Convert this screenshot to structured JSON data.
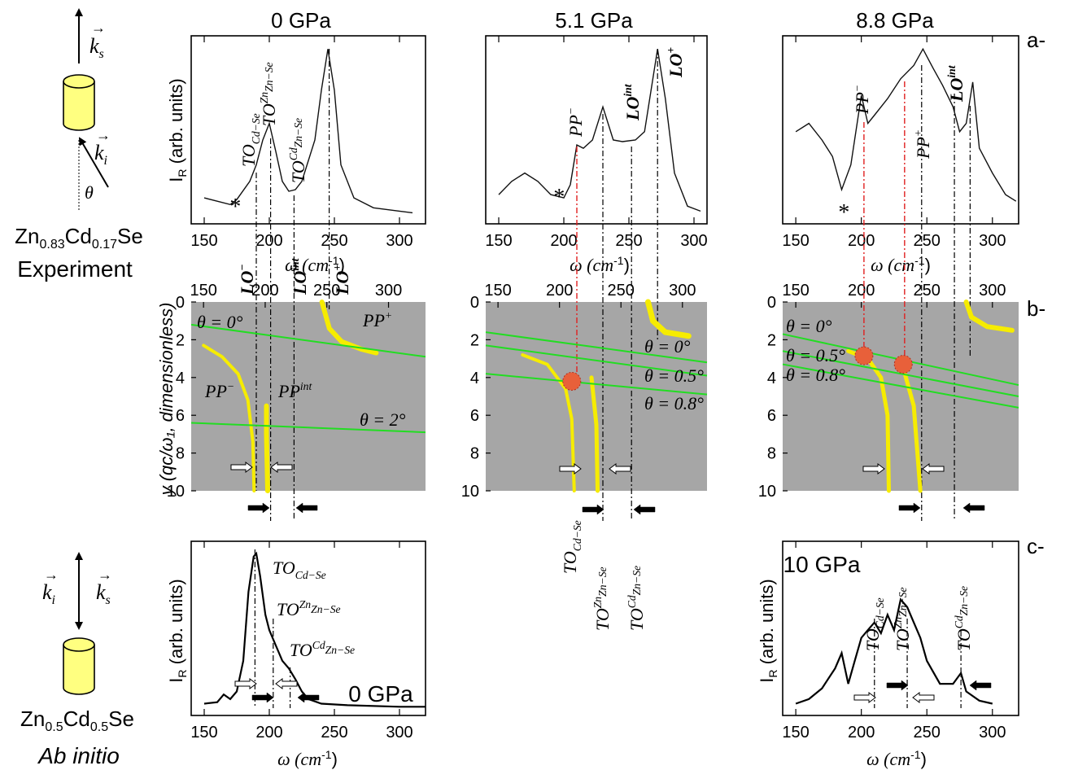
{
  "pressures": [
    "0 GPa",
    "5.1 GPa",
    "8.8 GPa"
  ],
  "row_tags": [
    "a-",
    "b-",
    "c-"
  ],
  "sample_top": {
    "formula_base": "Zn",
    "formula_sub1": "0.83",
    "formula_mid": "Cd",
    "formula_sub2": "0.17",
    "formula_end": "Se",
    "caption": "Experiment"
  },
  "sample_bottom": {
    "formula_base": "Zn",
    "formula_sub1": "0.5",
    "formula_mid": "Cd",
    "formula_sub2": "0.5",
    "formula_end": "Se",
    "caption": "Ab initio"
  },
  "vector_labels": {
    "ks": "k",
    "ks_sub": "s",
    "ki": "k",
    "ki_sub": "i",
    "theta": "θ"
  },
  "axes": {
    "raman_ylabel": "I",
    "raman_ylabel_sub": "R",
    "raman_ylabel_rest": " (arb. units)",
    "omega_label": "ω (cm",
    "omega_exp": "-1",
    "omega_close": ")",
    "y_label": "y (qc/ω₁, dimensionless)"
  },
  "peak_labels": {
    "to_cd": "TO",
    "to_cd_sub": "Cd−Se",
    "to_zn": "TO",
    "to_zn_sup": "Zn",
    "to_zn_sub": "Zn−Se",
    "to_zncd_sup": "Cd",
    "lo_minus": "LO",
    "lo_minus_sup": "−",
    "lo_int": "LO",
    "lo_int_sup": "int",
    "lo_plus": "LO",
    "lo_plus_sup": "+",
    "pp_minus": "PP",
    "pp_minus_sup": "−",
    "pp_plus": "PP",
    "pp_plus_sup": "+",
    "pp_int": "PP",
    "pp_int_sup": "int",
    "star": "*"
  },
  "theta_labels": {
    "p1": [
      "θ = 0°",
      "θ = 2°"
    ],
    "p2": [
      "θ = 0°",
      "θ = 0.5°",
      "θ = 0.8°"
    ],
    "p3": [
      "θ = 0°",
      "θ = 0.5°",
      "θ = 0.8°"
    ]
  },
  "inset_labels": {
    "p3": "10 GPa",
    "p1": "0 GPa"
  },
  "colors": {
    "background_map": "#a6a6a6",
    "pp_branch": "#f6ec00",
    "theta_line": "#22dd22",
    "marker": "#e8603a",
    "guide_red": "#e02020"
  },
  "chart_data": [
    {
      "type": "line",
      "title": "0 GPa",
      "xlabel": "ω (cm-1)",
      "ylabel": "IR (arb. units)",
      "xlim": [
        140,
        320
      ],
      "xticks": [
        150,
        200,
        250,
        300
      ],
      "x": [
        150,
        160,
        170,
        175,
        185,
        190,
        195,
        200,
        205,
        210,
        215,
        220,
        225,
        235,
        240,
        245,
        250,
        255,
        265,
        280,
        300,
        310
      ],
      "y": [
        0.1,
        0.08,
        0.06,
        0.09,
        0.2,
        0.3,
        0.45,
        0.55,
        0.38,
        0.2,
        0.14,
        0.15,
        0.2,
        0.45,
        0.75,
        1.0,
        0.75,
        0.3,
        0.1,
        0.04,
        0.02,
        0.01
      ],
      "peaks": {
        "TO_Cd-Se": 190,
        "TO_Zn-Se^Zn": 201,
        "TO_Zn-Se^Cd": 219,
        "LO+": 246
      }
    },
    {
      "type": "line",
      "title": "5.1 GPa",
      "xlabel": "ω (cm-1)",
      "ylabel": "",
      "xlim": [
        140,
        310
      ],
      "xticks": [
        150,
        200,
        250,
        300
      ],
      "x": [
        150,
        160,
        170,
        180,
        190,
        200,
        205,
        210,
        215,
        222,
        230,
        238,
        245,
        255,
        262,
        268,
        272,
        278,
        285,
        295,
        305
      ],
      "y": [
        0.12,
        0.2,
        0.25,
        0.2,
        0.12,
        0.1,
        0.18,
        0.42,
        0.4,
        0.45,
        0.65,
        0.45,
        0.44,
        0.45,
        0.5,
        0.8,
        1.0,
        0.7,
        0.25,
        0.05,
        0.02
      ],
      "peaks": {
        "PP-": 210,
        "LO_int": 252,
        "LO+": 272
      }
    },
    {
      "type": "line",
      "title": "8.8 GPa",
      "xlabel": "ω (cm-1)",
      "ylabel": "",
      "xlim": [
        140,
        320
      ],
      "xticks": [
        150,
        200,
        250,
        300
      ],
      "x": [
        150,
        160,
        170,
        178,
        185,
        192,
        200,
        205,
        210,
        220,
        230,
        240,
        247,
        255,
        262,
        270,
        275,
        280,
        285,
        290,
        300,
        310,
        318
      ],
      "y": [
        0.5,
        0.55,
        0.45,
        0.35,
        0.15,
        0.3,
        0.72,
        0.55,
        0.6,
        0.7,
        0.82,
        0.9,
        1.0,
        0.88,
        0.78,
        0.65,
        0.5,
        0.55,
        0.8,
        0.4,
        0.25,
        0.12,
        0.08
      ],
      "peaks": {
        "PP-": 200,
        "PP+": 233,
        "LO_int": 270
      }
    },
    {
      "type": "heatmap",
      "title": "0 GPa",
      "xlabel": "ω (cm-1)",
      "ylabel": "y (qc/ω1, dimensionless)",
      "xlim": [
        140,
        330
      ],
      "ylim": [
        0,
        10
      ],
      "xticks": [
        150,
        200,
        250,
        300
      ],
      "yticks": [
        0,
        2,
        4,
        6,
        8,
        10
      ],
      "theta_lines": [
        {
          "name": "θ = 0°",
          "x": [
            140,
            330
          ],
          "y": [
            1.2,
            2.9
          ]
        },
        {
          "name": "θ = 2°",
          "x": [
            140,
            330
          ],
          "y": [
            6.4,
            6.9
          ]
        }
      ],
      "modes": {
        "LO-": 190,
        "LO_int": 201,
        "LO+": 246,
        "TO_Zn-Se^Cd": 218
      }
    },
    {
      "type": "heatmap",
      "title": "5.1 GPa",
      "xlabel": "",
      "ylabel": "",
      "xlim": [
        140,
        320
      ],
      "ylim": [
        0,
        10
      ],
      "xticks": [
        150,
        200,
        250,
        300
      ],
      "yticks": [
        0,
        2,
        4,
        6,
        8,
        10
      ],
      "theta_lines": [
        {
          "name": "θ = 0°",
          "x": [
            140,
            320
          ],
          "y": [
            1.6,
            3.2
          ]
        },
        {
          "name": "θ = 0.5°",
          "x": [
            140,
            320
          ],
          "y": [
            2.3,
            3.9
          ]
        },
        {
          "name": "θ = 0.8°",
          "x": [
            140,
            320
          ],
          "y": [
            3.8,
            4.9
          ]
        }
      ],
      "markers": [
        {
          "x": 210,
          "y": 4.2
        }
      ],
      "modes": {
        "TO_Cd-Se": 210,
        "TO_Zn-Se^Zn": 230,
        "TO_Zn-Se^Cd": 252,
        "LO+": 272
      }
    },
    {
      "type": "heatmap",
      "title": "8.8 GPa",
      "xlabel": "",
      "ylabel": "",
      "xlim": [
        140,
        320
      ],
      "ylim": [
        0,
        10
      ],
      "xticks": [
        150,
        200,
        250,
        300
      ],
      "yticks": [
        0,
        2,
        4,
        6,
        8,
        10
      ],
      "theta_lines": [
        {
          "name": "θ = 0°",
          "x": [
            140,
            320
          ],
          "y": [
            1.7,
            4.4
          ]
        },
        {
          "name": "θ = 0.5°",
          "x": [
            140,
            320
          ],
          "y": [
            2.6,
            5.0
          ]
        },
        {
          "name": "θ = 0.8°",
          "x": [
            140,
            320
          ],
          "y": [
            3.3,
            5.6
          ]
        }
      ],
      "markers": [
        {
          "x": 202,
          "y": 2.85
        },
        {
          "x": 232,
          "y": 3.3
        }
      ],
      "modes": {
        "PP-": 202,
        "PP+": 233,
        "LO": 246,
        "LO_int": 270,
        "LO+": 280
      }
    },
    {
      "type": "line",
      "title": "0 GPa",
      "xlabel": "ω (cm-1)",
      "ylabel": "IR (arb. units)",
      "xlim": [
        140,
        320
      ],
      "xticks": [
        150,
        200,
        250,
        300
      ],
      "x": [
        150,
        160,
        165,
        170,
        175,
        180,
        184,
        188,
        190,
        193,
        197,
        200,
        205,
        210,
        215,
        220,
        225,
        230,
        240,
        260,
        300,
        320
      ],
      "y": [
        0.02,
        0.03,
        0.08,
        0.05,
        0.1,
        0.3,
        0.75,
        0.98,
        1.0,
        0.85,
        0.6,
        0.5,
        0.4,
        0.3,
        0.25,
        0.18,
        0.1,
        0.05,
        0.02,
        0.01,
        0.0,
        0.0
      ],
      "peaks": {
        "TO_Cd-Se": 189,
        "TO_Zn-Se^Zn": 203,
        "TO_Zn-Se^Cd": 216
      }
    },
    {
      "type": "line",
      "title": "10 GPa",
      "xlabel": "ω (cm-1)",
      "ylabel": "IR (arb. units)",
      "xlim": [
        140,
        320
      ],
      "xticks": [
        150,
        200,
        250,
        300
      ],
      "x": [
        150,
        160,
        170,
        180,
        185,
        190,
        195,
        200,
        205,
        210,
        215,
        220,
        225,
        230,
        235,
        240,
        245,
        250,
        260,
        270,
        276,
        280,
        290,
        300
      ],
      "y": [
        0.02,
        0.05,
        0.12,
        0.25,
        0.35,
        0.15,
        0.3,
        0.45,
        0.5,
        0.55,
        0.48,
        0.6,
        0.5,
        0.7,
        0.65,
        0.55,
        0.45,
        0.3,
        0.15,
        0.15,
        0.22,
        0.1,
        0.04,
        0.02
      ],
      "peaks": {
        "TO_Cd-Se": 210,
        "TO_Zn-Se^Zn": 235,
        "TO_Zn-Se^Cd": 276
      }
    }
  ]
}
